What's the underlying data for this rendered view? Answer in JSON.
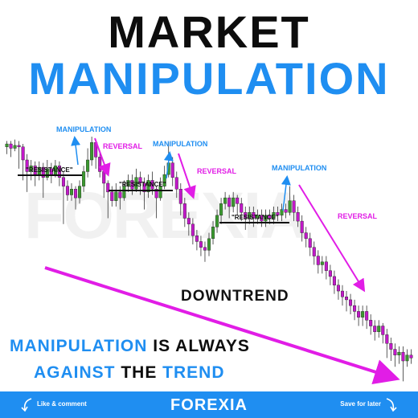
{
  "title": {
    "line1": "MARKET",
    "line2": "MANIPULATION"
  },
  "labels": {
    "manipulation": "MANIPULATION",
    "reversal": "REVERSAL",
    "resistance": "\"RESISTANCE\"",
    "downtrend": "DOWNTREND"
  },
  "caption": {
    "line1_a": "MANIPULATION",
    "line1_b": " IS ALWAYS",
    "line2_a": "AGAINST",
    "line2_b": " THE ",
    "line2_c": "TREND"
  },
  "watermark": "FOREXIA",
  "footer": {
    "left": "Like & comment",
    "brand": "FOREXIA",
    "right": "Save for later"
  },
  "colors": {
    "accent_blue": "#1f8ef1",
    "magenta": "#e11de6",
    "bull": "#3a9a2e",
    "bear": "#c218c9"
  },
  "chart_data": {
    "type": "candlestick",
    "note_levels": "price scale is unlabeled; values are relative (0 = bottom, 100 = top)",
    "candles": [
      {
        "o": 93,
        "c": 95,
        "h": 97,
        "l": 88
      },
      {
        "o": 95,
        "c": 92,
        "h": 97,
        "l": 86
      },
      {
        "o": 92,
        "c": 94,
        "h": 98,
        "l": 90
      },
      {
        "o": 94,
        "c": 93,
        "h": 97,
        "l": 78
      },
      {
        "o": 93,
        "c": 84,
        "h": 95,
        "l": 70
      },
      {
        "o": 84,
        "c": 76,
        "h": 88,
        "l": 62
      },
      {
        "o": 76,
        "c": 80,
        "h": 84,
        "l": 70
      },
      {
        "o": 80,
        "c": 74,
        "h": 83,
        "l": 66
      },
      {
        "o": 74,
        "c": 79,
        "h": 83,
        "l": 70
      },
      {
        "o": 79,
        "c": 72,
        "h": 82,
        "l": 58
      },
      {
        "o": 72,
        "c": 78,
        "h": 84,
        "l": 70
      },
      {
        "o": 78,
        "c": 74,
        "h": 82,
        "l": 68
      },
      {
        "o": 74,
        "c": 80,
        "h": 84,
        "l": 72
      },
      {
        "o": 80,
        "c": 72,
        "h": 83,
        "l": 66
      },
      {
        "o": 72,
        "c": 66,
        "h": 76,
        "l": 40
      },
      {
        "o": 66,
        "c": 60,
        "h": 70,
        "l": 56
      },
      {
        "o": 60,
        "c": 64,
        "h": 68,
        "l": 56
      },
      {
        "o": 64,
        "c": 58,
        "h": 66,
        "l": 50
      },
      {
        "o": 58,
        "c": 66,
        "h": 70,
        "l": 54
      },
      {
        "o": 66,
        "c": 76,
        "h": 80,
        "l": 62
      },
      {
        "o": 76,
        "c": 84,
        "h": 92,
        "l": 72
      },
      {
        "o": 84,
        "c": 96,
        "h": 100,
        "l": 80
      },
      {
        "o": 96,
        "c": 86,
        "h": 98,
        "l": 78
      },
      {
        "o": 86,
        "c": 76,
        "h": 90,
        "l": 72
      },
      {
        "o": 76,
        "c": 68,
        "h": 80,
        "l": 58
      },
      {
        "o": 68,
        "c": 62,
        "h": 70,
        "l": 44
      },
      {
        "o": 62,
        "c": 56,
        "h": 66,
        "l": 52
      },
      {
        "o": 56,
        "c": 62,
        "h": 68,
        "l": 52
      },
      {
        "o": 62,
        "c": 58,
        "h": 66,
        "l": 50
      },
      {
        "o": 58,
        "c": 66,
        "h": 70,
        "l": 56
      },
      {
        "o": 66,
        "c": 70,
        "h": 74,
        "l": 62
      },
      {
        "o": 70,
        "c": 64,
        "h": 74,
        "l": 60
      },
      {
        "o": 64,
        "c": 72,
        "h": 78,
        "l": 62
      },
      {
        "o": 72,
        "c": 68,
        "h": 76,
        "l": 60
      },
      {
        "o": 68,
        "c": 62,
        "h": 72,
        "l": 50
      },
      {
        "o": 62,
        "c": 70,
        "h": 74,
        "l": 58
      },
      {
        "o": 70,
        "c": 64,
        "h": 76,
        "l": 60
      },
      {
        "o": 64,
        "c": 58,
        "h": 66,
        "l": 44
      },
      {
        "o": 58,
        "c": 66,
        "h": 72,
        "l": 56
      },
      {
        "o": 66,
        "c": 74,
        "h": 80,
        "l": 64
      },
      {
        "o": 74,
        "c": 82,
        "h": 96,
        "l": 72
      },
      {
        "o": 82,
        "c": 72,
        "h": 86,
        "l": 66
      },
      {
        "o": 72,
        "c": 64,
        "h": 76,
        "l": 58
      },
      {
        "o": 64,
        "c": 54,
        "h": 68,
        "l": 46
      },
      {
        "o": 54,
        "c": 44,
        "h": 58,
        "l": 38
      },
      {
        "o": 44,
        "c": 40,
        "h": 48,
        "l": 32
      },
      {
        "o": 40,
        "c": 32,
        "h": 44,
        "l": 26
      },
      {
        "o": 32,
        "c": 28,
        "h": 36,
        "l": 22
      },
      {
        "o": 28,
        "c": 24,
        "h": 32,
        "l": 18
      },
      {
        "o": 24,
        "c": 22,
        "h": 28,
        "l": 14
      },
      {
        "o": 22,
        "c": 30,
        "h": 34,
        "l": 18
      },
      {
        "o": 30,
        "c": 38,
        "h": 42,
        "l": 26
      },
      {
        "o": 38,
        "c": 46,
        "h": 50,
        "l": 34
      },
      {
        "o": 46,
        "c": 54,
        "h": 58,
        "l": 40
      },
      {
        "o": 54,
        "c": 58,
        "h": 62,
        "l": 50
      },
      {
        "o": 58,
        "c": 52,
        "h": 60,
        "l": 44
      },
      {
        "o": 52,
        "c": 58,
        "h": 62,
        "l": 48
      },
      {
        "o": 58,
        "c": 54,
        "h": 60,
        "l": 46
      },
      {
        "o": 54,
        "c": 48,
        "h": 58,
        "l": 42
      },
      {
        "o": 48,
        "c": 44,
        "h": 52,
        "l": 36
      },
      {
        "o": 44,
        "c": 48,
        "h": 52,
        "l": 40
      },
      {
        "o": 48,
        "c": 44,
        "h": 52,
        "l": 38
      },
      {
        "o": 44,
        "c": 46,
        "h": 50,
        "l": 40
      },
      {
        "o": 46,
        "c": 42,
        "h": 50,
        "l": 38
      },
      {
        "o": 42,
        "c": 46,
        "h": 50,
        "l": 38
      },
      {
        "o": 46,
        "c": 44,
        "h": 50,
        "l": 40
      },
      {
        "o": 44,
        "c": 48,
        "h": 52,
        "l": 40
      },
      {
        "o": 48,
        "c": 46,
        "h": 52,
        "l": 42
      },
      {
        "o": 46,
        "c": 50,
        "h": 54,
        "l": 42
      },
      {
        "o": 50,
        "c": 48,
        "h": 54,
        "l": 44
      },
      {
        "o": 48,
        "c": 56,
        "h": 66,
        "l": 46
      },
      {
        "o": 56,
        "c": 48,
        "h": 60,
        "l": 42
      },
      {
        "o": 48,
        "c": 42,
        "h": 52,
        "l": 38
      },
      {
        "o": 42,
        "c": 34,
        "h": 46,
        "l": 28
      },
      {
        "o": 34,
        "c": 30,
        "h": 38,
        "l": 24
      },
      {
        "o": 30,
        "c": 24,
        "h": 34,
        "l": 18
      },
      {
        "o": 24,
        "c": 18,
        "h": 28,
        "l": 12
      },
      {
        "o": 18,
        "c": 12,
        "h": 22,
        "l": 6
      },
      {
        "o": 12,
        "c": 14,
        "h": 18,
        "l": 6
      },
      {
        "o": 14,
        "c": 8,
        "h": 18,
        "l": 2
      },
      {
        "o": 8,
        "c": 4,
        "h": 12,
        "l": -2
      },
      {
        "o": 4,
        "c": -2,
        "h": 8,
        "l": -8
      },
      {
        "o": -2,
        "c": -6,
        "h": 2,
        "l": -12
      },
      {
        "o": -6,
        "c": -10,
        "h": -2,
        "l": -16
      },
      {
        "o": -10,
        "c": -12,
        "h": -6,
        "l": -20
      },
      {
        "o": -12,
        "c": -16,
        "h": -8,
        "l": -22
      },
      {
        "o": -16,
        "c": -20,
        "h": -12,
        "l": -26
      },
      {
        "o": -20,
        "c": -24,
        "h": -16,
        "l": -30
      },
      {
        "o": -24,
        "c": -20,
        "h": -16,
        "l": -30
      },
      {
        "o": -20,
        "c": -26,
        "h": -16,
        "l": -32
      },
      {
        "o": -26,
        "c": -30,
        "h": -22,
        "l": -36
      },
      {
        "o": -30,
        "c": -34,
        "h": -26,
        "l": -40
      },
      {
        "o": -34,
        "c": -30,
        "h": -26,
        "l": -38
      },
      {
        "o": -30,
        "c": -36,
        "h": -28,
        "l": -42
      },
      {
        "o": -36,
        "c": -42,
        "h": -32,
        "l": -52
      },
      {
        "o": -42,
        "c": -46,
        "h": -38,
        "l": -54
      },
      {
        "o": -46,
        "c": -50,
        "h": -42,
        "l": -58
      },
      {
        "o": -50,
        "c": -48,
        "h": -44,
        "l": -56
      },
      {
        "o": -48,
        "c": -54,
        "h": -44,
        "l": -68
      },
      {
        "o": -54,
        "c": -50,
        "h": -46,
        "l": -58
      },
      {
        "o": -50,
        "c": -52,
        "h": -46,
        "l": -56
      }
    ]
  }
}
